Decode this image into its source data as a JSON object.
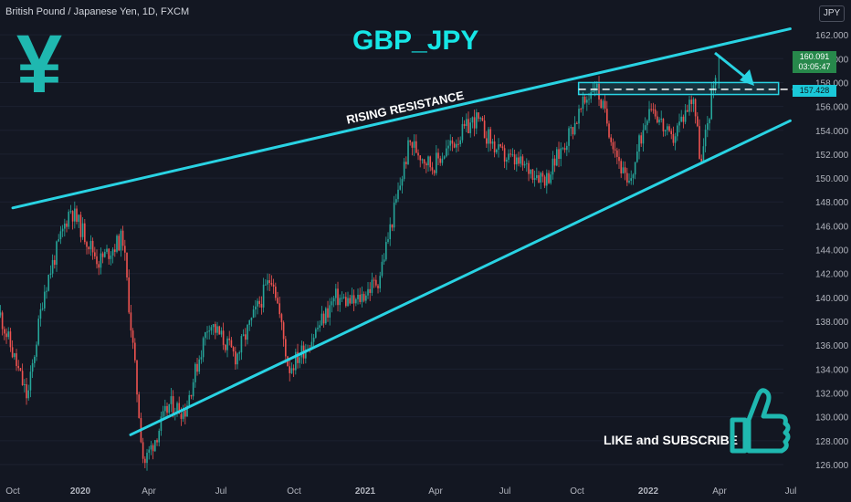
{
  "header": {
    "symbol_label": "British Pound / Japanese Yen, 1D, FXCM",
    "currency": "JPY"
  },
  "title": "GBP_JPY",
  "overlay": {
    "yen_symbol": "¥",
    "resistance_label": "RISING RESISTANCE",
    "cta": "LIKE and SUBSCRIBE"
  },
  "price_tags": {
    "current": "160.091",
    "countdown": "03:05:47",
    "level": "157.428"
  },
  "colors": {
    "background": "#131722",
    "up_candle": "#26a69a",
    "down_candle": "#ef5350",
    "trendline": "#29d3e3",
    "accent": "#16e6e6"
  },
  "chart_data": {
    "type": "candlestick",
    "x_tick_labels": [
      "Oct",
      "2020",
      "Apr",
      "Jul",
      "Oct",
      "2021",
      "Apr",
      "Jul",
      "Oct",
      "2022",
      "Apr",
      "Jul"
    ],
    "y_tick_labels": [
      "126.000",
      "128.000",
      "130.000",
      "132.000",
      "134.000",
      "136.000",
      "138.000",
      "140.000",
      "142.000",
      "144.000",
      "146.000",
      "148.000",
      "150.000",
      "152.000",
      "154.000",
      "156.000",
      "158.000",
      "160.000",
      "162.000"
    ],
    "ylim": [
      125,
      164
    ],
    "price_path": [
      {
        "x": "2019-09-15",
        "y": 138.5
      },
      {
        "x": "2019-10-20",
        "y": 131.5
      },
      {
        "x": "2019-11-10",
        "y": 140.5
      },
      {
        "x": "2019-12-14",
        "y": 147.5
      },
      {
        "x": "2020-01-20",
        "y": 143.0
      },
      {
        "x": "2020-02-20",
        "y": 145.0
      },
      {
        "x": "2020-03-18",
        "y": 126.0
      },
      {
        "x": "2020-04-20",
        "y": 131.0
      },
      {
        "x": "2020-05-10",
        "y": 130.5
      },
      {
        "x": "2020-06-10",
        "y": 138.0
      },
      {
        "x": "2020-07-15",
        "y": 135.0
      },
      {
        "x": "2020-08-31",
        "y": 142.0
      },
      {
        "x": "2020-09-21",
        "y": 134.0
      },
      {
        "x": "2020-10-20",
        "y": 136.5
      },
      {
        "x": "2020-11-20",
        "y": 140.0
      },
      {
        "x": "2020-12-15",
        "y": 139.5
      },
      {
        "x": "2021-01-15",
        "y": 141.5
      },
      {
        "x": "2021-02-24",
        "y": 153.0
      },
      {
        "x": "2021-03-25",
        "y": 151.0
      },
      {
        "x": "2021-05-20",
        "y": 155.0
      },
      {
        "x": "2021-06-20",
        "y": 152.0
      },
      {
        "x": "2021-08-20",
        "y": 150.0
      },
      {
        "x": "2021-10-21",
        "y": 158.0
      },
      {
        "x": "2021-12-03",
        "y": 149.0
      },
      {
        "x": "2021-12-31",
        "y": 156.5
      },
      {
        "x": "2022-01-27",
        "y": 153.0
      },
      {
        "x": "2022-02-25",
        "y": 157.0
      },
      {
        "x": "2022-03-07",
        "y": 151.0
      },
      {
        "x": "2022-03-28",
        "y": 160.0
      }
    ],
    "trendlines": [
      {
        "name": "rising resistance",
        "start": {
          "x": "2019-10-01",
          "y": 147.5
        },
        "end": {
          "x": "2022-06-30",
          "y": 162.5
        }
      },
      {
        "name": "rising support",
        "start": {
          "x": "2020-03-01",
          "y": 128.5
        },
        "end": {
          "x": "2022-06-30",
          "y": 154.8
        }
      }
    ],
    "horizontal_level": 157.428,
    "resistance_zone": [
      157.0,
      158.0
    ],
    "last_price": 160.091
  }
}
